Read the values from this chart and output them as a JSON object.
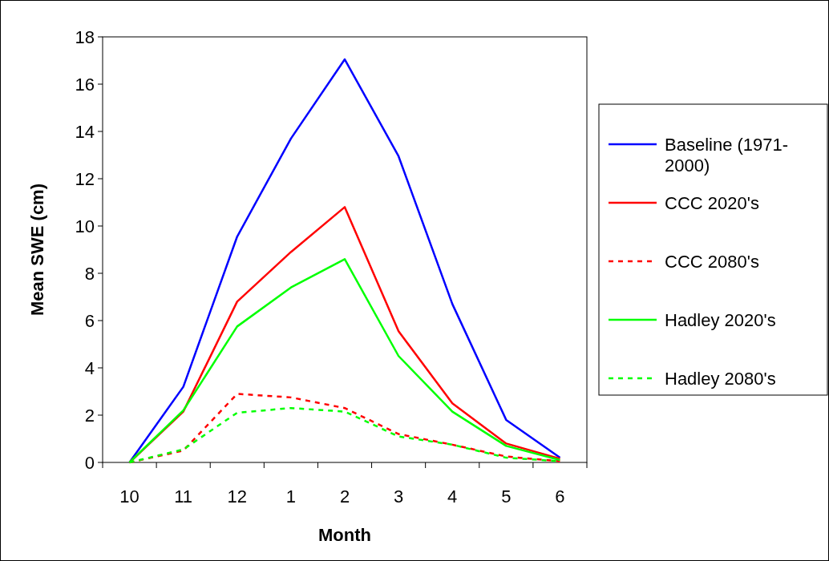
{
  "chart_data": {
    "type": "line",
    "xlabel": "Month",
    "ylabel": "Mean SWE (cm)",
    "categories": [
      "10",
      "11",
      "12",
      "1",
      "2",
      "3",
      "4",
      "5",
      "6"
    ],
    "series": [
      {
        "name": "Baseline (1971-2000)",
        "color": "#0000ff",
        "line_style": "solid",
        "values": [
          0,
          3.2,
          9.55,
          13.7,
          17.05,
          12.95,
          6.7,
          1.8,
          0.2
        ]
      },
      {
        "name": "CCC 2020's",
        "color": "#ff0000",
        "line_style": "solid",
        "values": [
          0,
          2.15,
          6.8,
          8.9,
          10.8,
          5.55,
          2.5,
          0.8,
          0.15
        ]
      },
      {
        "name": "CCC 2080's",
        "color": "#ff0000",
        "line_style": "dashed",
        "values": [
          0,
          0.5,
          2.9,
          2.75,
          2.3,
          1.2,
          0.75,
          0.25,
          0.05
        ]
      },
      {
        "name": "Hadley 2020's",
        "color": "#00ff00",
        "line_style": "solid",
        "values": [
          0,
          2.2,
          5.75,
          7.4,
          8.6,
          4.5,
          2.15,
          0.7,
          0.1
        ]
      },
      {
        "name": "Hadley 2080's",
        "color": "#00ff00",
        "line_style": "dashed",
        "values": [
          0,
          0.55,
          2.1,
          2.3,
          2.15,
          1.1,
          0.75,
          0.2,
          0.05
        ]
      }
    ],
    "ylim": [
      0,
      18
    ],
    "yticks": [
      0,
      2,
      4,
      6,
      8,
      10,
      12,
      14,
      16,
      18
    ],
    "grid": false,
    "legend": "right",
    "marker": "none"
  }
}
